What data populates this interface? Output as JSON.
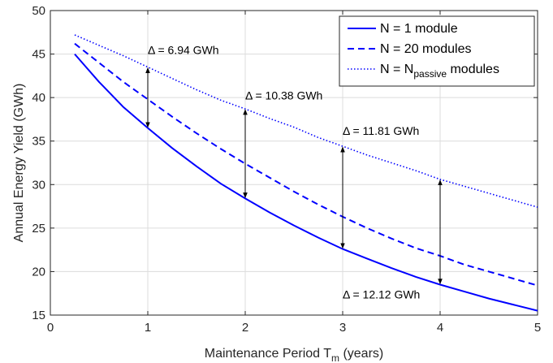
{
  "chart_data": {
    "type": "line",
    "xlabel": "Maintenance Period T",
    "xlabel_sub": "m",
    "xlabel_suffix": " (years)",
    "ylabel": "Annual Energy Yield (GWh)",
    "xlim": [
      0,
      5
    ],
    "ylim": [
      15,
      50
    ],
    "xticks": [
      0,
      1,
      2,
      3,
      4,
      5
    ],
    "yticks": [
      15,
      20,
      25,
      30,
      35,
      40,
      45,
      50
    ],
    "grid": true,
    "legend_position": "top-right",
    "series": [
      {
        "name": "N = 1 module",
        "style": "solid",
        "color": "#0000ff",
        "x": [
          0.25,
          0.5,
          0.75,
          1.0,
          1.25,
          1.5,
          1.75,
          2.0,
          2.25,
          2.5,
          2.75,
          3.0,
          3.25,
          3.5,
          3.75,
          4.0,
          4.25,
          4.5,
          4.75,
          5.0
        ],
        "y": [
          45.0,
          41.8,
          38.9,
          36.5,
          34.2,
          32.1,
          30.1,
          28.4,
          26.8,
          25.3,
          23.9,
          22.6,
          21.5,
          20.4,
          19.4,
          18.5,
          17.7,
          16.9,
          16.2,
          15.5
        ]
      },
      {
        "name": "N = 20 modules",
        "style": "dashed",
        "color": "#0000ff",
        "x": [
          0.25,
          0.5,
          0.75,
          1.0,
          1.25,
          1.5,
          1.75,
          2.0,
          2.25,
          2.5,
          2.75,
          3.0,
          3.25,
          3.5,
          3.75,
          4.0,
          4.25,
          4.5,
          4.75,
          5.0
        ],
        "y": [
          46.2,
          44.0,
          41.8,
          39.8,
          37.8,
          35.9,
          34.1,
          32.4,
          30.8,
          29.2,
          27.7,
          26.3,
          25.0,
          23.8,
          22.7,
          21.8,
          20.8,
          20.0,
          19.2,
          18.4
        ]
      },
      {
        "name_prefix": "N = N",
        "name_sub": "passive",
        "name_suffix": " modules",
        "style": "dotted",
        "color": "#0000ff",
        "x": [
          0.25,
          0.5,
          0.75,
          1.0,
          1.25,
          1.5,
          1.75,
          2.0,
          2.25,
          2.5,
          2.75,
          3.0,
          3.25,
          3.5,
          3.75,
          4.0,
          4.25,
          4.5,
          4.75,
          5.0
        ],
        "y": [
          47.2,
          46.0,
          44.8,
          43.5,
          42.2,
          40.9,
          39.7,
          38.7,
          37.6,
          36.6,
          35.4,
          34.4,
          33.4,
          32.5,
          31.6,
          30.6,
          29.8,
          29.0,
          28.2,
          27.4
        ]
      }
    ],
    "arrows": [
      {
        "x": 1,
        "y_low": 36.5,
        "y_high": 43.5
      },
      {
        "x": 2,
        "y_low": 28.4,
        "y_high": 38.7
      },
      {
        "x": 3,
        "y_low": 22.6,
        "y_high": 34.4
      },
      {
        "x": 4,
        "y_low": 18.5,
        "y_high": 30.6
      }
    ],
    "annotations": [
      {
        "text": "Δ = 6.94 GWh",
        "x": 1.0,
        "y": 45.0
      },
      {
        "text": "Δ = 10.38 GWh",
        "x": 2.0,
        "y": 39.8
      },
      {
        "text": "Δ = 11.81 GWh",
        "x": 3.0,
        "y": 35.7
      },
      {
        "text": "Δ = 12.12 GWh",
        "x": 3.0,
        "y": 16.9
      }
    ]
  }
}
